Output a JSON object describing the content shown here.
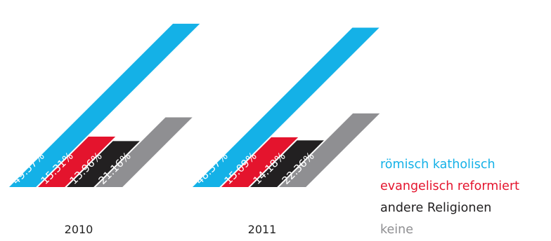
{
  "chart_data": {
    "type": "bar",
    "categories": [
      "2010",
      "2011"
    ],
    "series": [
      {
        "name": "römisch katholisch",
        "color": "#14b1e7",
        "values": [
          49.57,
          48.37
        ],
        "labels": [
          "49.57%",
          "48.37%"
        ]
      },
      {
        "name": "evangelisch reformiert",
        "color": "#e4142d",
        "values": [
          15.31,
          15.09
        ],
        "labels": [
          "15.31%",
          "15.09%"
        ]
      },
      {
        "name": "andere Religionen",
        "color": "#222021",
        "values": [
          13.96,
          14.18
        ],
        "labels": [
          "13.96%",
          "14.18%"
        ]
      },
      {
        "name": "keine",
        "color": "#8f8f92",
        "values": [
          21.16,
          22.36
        ],
        "labels": [
          "21.16%",
          "22.36%"
        ]
      }
    ],
    "legend_position": "bottom-right",
    "grid": false
  }
}
